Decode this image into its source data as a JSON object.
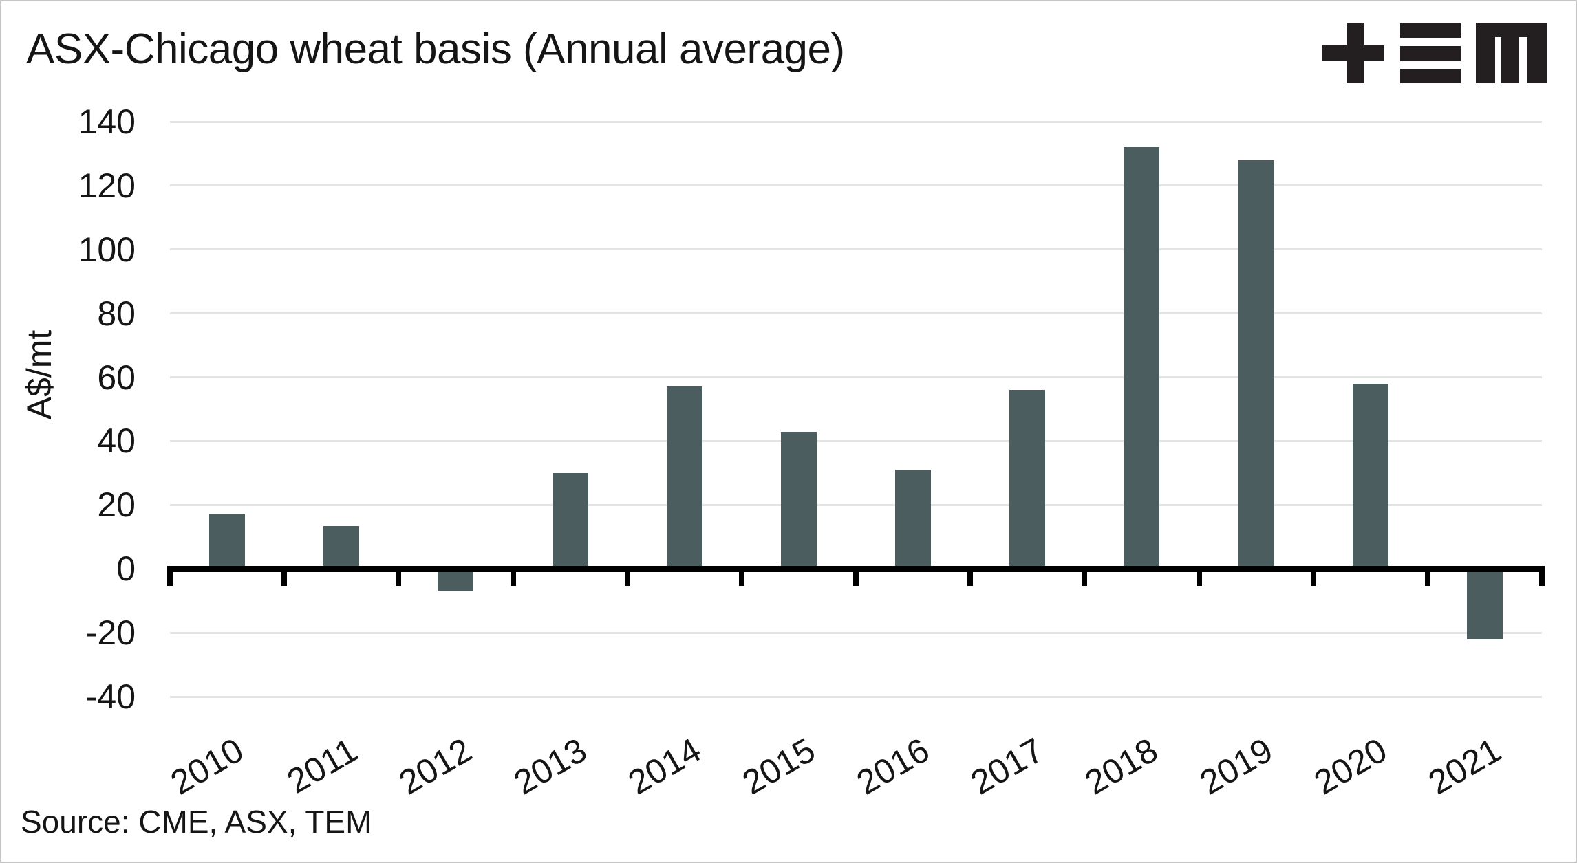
{
  "header": {
    "title": "ASX-Chicago wheat basis (Annual average)"
  },
  "footer": {
    "source": "Source: CME, ASX, TEM"
  },
  "logo": {
    "name": "TEM",
    "color": "#231f20"
  },
  "chart_data": {
    "type": "bar",
    "title": "ASX-Chicago wheat basis (Annual average)",
    "categories": [
      "2010",
      "2011",
      "2012",
      "2013",
      "2014",
      "2015",
      "2016",
      "2017",
      "2018",
      "2019",
      "2020",
      "2021"
    ],
    "values": [
      17,
      13.5,
      -7,
      30,
      57,
      43,
      31,
      56,
      132,
      128,
      58,
      -22
    ],
    "xlabel": "",
    "ylabel": "A$/mt",
    "ylim": [
      -40,
      140
    ],
    "yticks": [
      140,
      120,
      100,
      80,
      60,
      40,
      20,
      0,
      -20,
      -40
    ],
    "grid": true,
    "legend": false,
    "x_tick_rotation_deg": -30,
    "bar_color": "#4c5d60",
    "gridline_color": "#e4e4e4",
    "axis_color": "#000000",
    "text_color": "#151515"
  }
}
